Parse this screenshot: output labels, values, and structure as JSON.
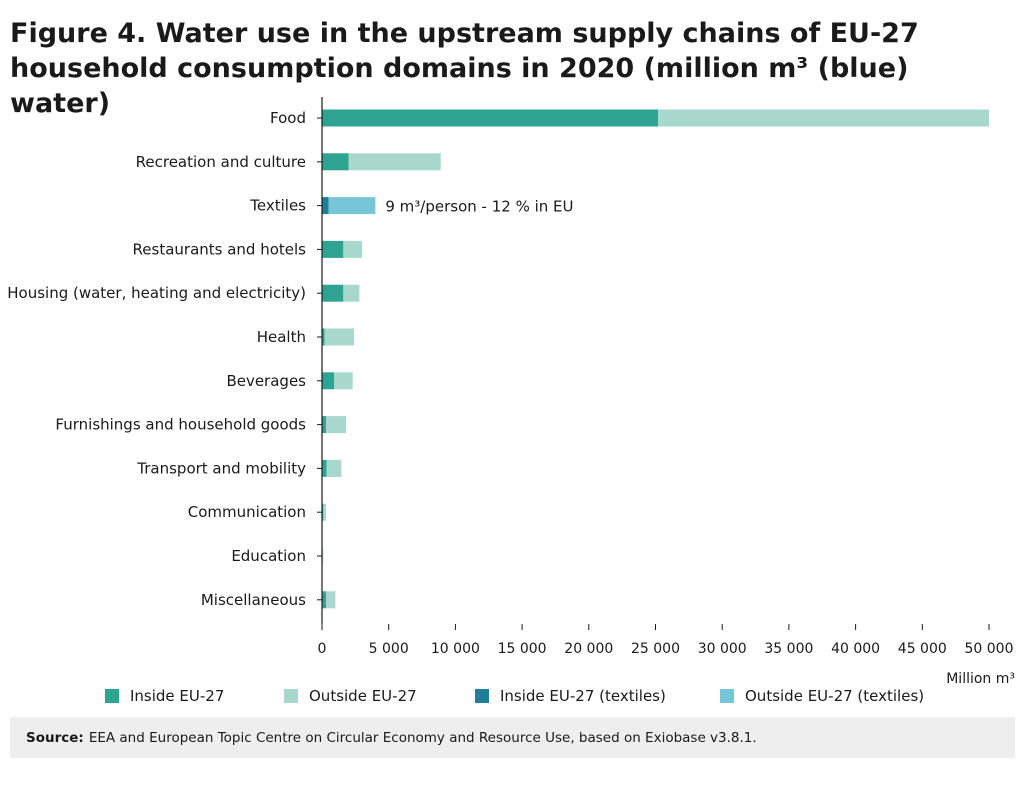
{
  "title": "Figure 4. Water use in the upstream supply chains of EU-27 household consumption domains in 2020 (million m³ (blue) water)",
  "source": {
    "label": "Source:",
    "text": "EEA and European Topic Centre on Circular Economy and Resource Use, based on Exiobase v3.8.1."
  },
  "colors": {
    "inside": "#2ea392",
    "outside": "#a8d8cb",
    "inside_textiles": "#1f7f9a",
    "outside_textiles": "#78c5d8",
    "axis": "#1a1a1a"
  },
  "chart_data": {
    "type": "bar",
    "orientation": "horizontal",
    "stacked": true,
    "categories": [
      "Food",
      "Recreation and culture",
      "Textiles",
      "Restaurants and hotels",
      "Housing (water, heating and electricity)",
      "Health",
      "Beverages",
      "Furnishings and household goods",
      "Transport and mobility",
      "Communication",
      "Education",
      "Miscellaneous"
    ],
    "series": [
      {
        "name": "Inside EU-27",
        "color_key": "inside",
        "values": [
          25200,
          2000,
          0,
          1600,
          1600,
          200,
          900,
          300,
          350,
          100,
          30,
          300
        ]
      },
      {
        "name": "Outside EU-27",
        "color_key": "outside",
        "values": [
          24800,
          6900,
          0,
          1400,
          1200,
          2200,
          1400,
          1500,
          1100,
          200,
          20,
          700
        ]
      },
      {
        "name": "Inside EU-27 (textiles)",
        "color_key": "inside_textiles",
        "values": [
          0,
          0,
          500,
          0,
          0,
          0,
          0,
          0,
          0,
          0,
          0,
          0
        ]
      },
      {
        "name": "Outside EU-27 (textiles)",
        "color_key": "outside_textiles",
        "values": [
          0,
          0,
          3500,
          0,
          0,
          0,
          0,
          0,
          0,
          0,
          0,
          0
        ]
      }
    ],
    "xlim": [
      0,
      50000
    ],
    "xticks": [
      0,
      5000,
      10000,
      15000,
      20000,
      25000,
      30000,
      35000,
      40000,
      45000,
      50000
    ],
    "xtick_labels": [
      "0",
      "5 000",
      "10 000",
      "15 000",
      "20 000",
      "25 000",
      "30 000",
      "35 000",
      "40 000",
      "45 000",
      "50 000"
    ],
    "xlabel": "Million m³",
    "ylabel": "",
    "annotations": [
      {
        "category": "Textiles",
        "text": "9 m³/person - 12 % in EU"
      }
    ],
    "grid": false,
    "legend": "bottom"
  }
}
